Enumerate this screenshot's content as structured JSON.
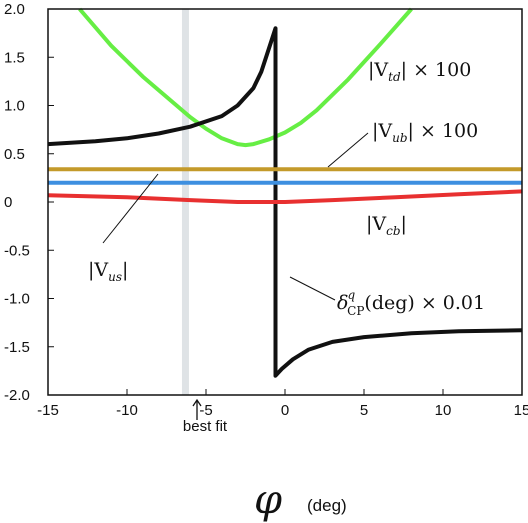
{
  "chart_data": {
    "type": "line",
    "xlabel_symbol": "φ",
    "xlabel_unit": "(deg)",
    "xlim": [
      -15,
      15
    ],
    "ylim": [
      -2.0,
      2.0
    ],
    "x_ticks": [
      -15,
      -10,
      -5,
      0,
      5,
      10,
      15
    ],
    "y_ticks": [
      {
        "value": 2.0,
        "label": "2.0"
      },
      {
        "value": 1.5,
        "label": "1.5"
      },
      {
        "value": 1.0,
        "label": "1.0"
      },
      {
        "value": 0.5,
        "label": "0.5"
      },
      {
        "value": 0.0,
        "label": "0"
      },
      {
        "value": -0.5,
        "label": "-0.5"
      },
      {
        "value": -1.0,
        "label": "-1.0"
      },
      {
        "value": -1.5,
        "label": "-1.5"
      },
      {
        "value": -2.0,
        "label": "-2.0"
      }
    ],
    "best_fit": {
      "x": -6.3,
      "label": "best fit",
      "color": "#dfe3e6"
    },
    "series": [
      {
        "id": "vtd",
        "color": "#66ee44",
        "label_parts": {
          "pre": "|V",
          "sub": "td",
          "post": "| × 100"
        },
        "points": [
          [
            -13,
            2.0
          ],
          [
            -11,
            1.62
          ],
          [
            -9,
            1.3
          ],
          [
            -7,
            1.02
          ],
          [
            -6,
            0.88
          ],
          [
            -5,
            0.76
          ],
          [
            -4,
            0.66
          ],
          [
            -3,
            0.6
          ],
          [
            -2.5,
            0.59
          ],
          [
            -2,
            0.6
          ],
          [
            -1,
            0.65
          ],
          [
            0,
            0.72
          ],
          [
            1,
            0.82
          ],
          [
            2,
            0.95
          ],
          [
            4,
            1.27
          ],
          [
            6,
            1.63
          ],
          [
            8,
            2.0
          ]
        ]
      },
      {
        "id": "delta",
        "color": "#111111",
        "label_parts": {
          "pre": "δ",
          "sup": "q",
          "sub": "CP",
          "post": "(deg) × 0.01"
        },
        "points": [
          [
            -15,
            0.6
          ],
          [
            -12,
            0.63
          ],
          [
            -10,
            0.66
          ],
          [
            -8,
            0.71
          ],
          [
            -6,
            0.78
          ],
          [
            -4,
            0.89
          ],
          [
            -3,
            1.0
          ],
          [
            -2,
            1.18
          ],
          [
            -1.5,
            1.35
          ],
          [
            -1,
            1.6
          ],
          [
            -0.6,
            1.8
          ],
          [
            -0.6,
            -1.8
          ],
          [
            -0.2,
            -1.73
          ],
          [
            0.5,
            -1.63
          ],
          [
            1.5,
            -1.53
          ],
          [
            3,
            -1.45
          ],
          [
            5,
            -1.4
          ],
          [
            8,
            -1.36
          ],
          [
            11,
            -1.34
          ],
          [
            15,
            -1.33
          ]
        ]
      },
      {
        "id": "vub",
        "color": "#c49a2a",
        "label_parts": {
          "pre": "|V",
          "sub": "ub",
          "post": "| × 100"
        },
        "points": [
          [
            -15,
            0.34
          ],
          [
            15,
            0.34
          ]
        ]
      },
      {
        "id": "vus",
        "color": "#3d8fe0",
        "label_parts": {
          "pre": "|V",
          "sub": "us",
          "post": "|"
        },
        "points": [
          [
            -15,
            0.2
          ],
          [
            15,
            0.2
          ]
        ]
      },
      {
        "id": "vcb",
        "color": "#e83030",
        "label_parts": {
          "pre": "|V",
          "sub": "cb",
          "post": "|"
        },
        "points": [
          [
            -15,
            0.07
          ],
          [
            -10,
            0.05
          ],
          [
            -6,
            0.02
          ],
          [
            -3,
            0.0
          ],
          [
            -1,
            0.0
          ],
          [
            0,
            0.0
          ],
          [
            3,
            0.02
          ],
          [
            7,
            0.05
          ],
          [
            11,
            0.08
          ],
          [
            15,
            0.11
          ]
        ]
      }
    ]
  }
}
